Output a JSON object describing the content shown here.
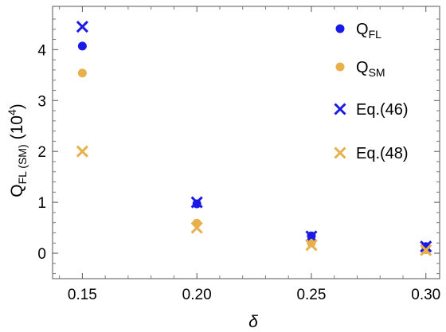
{
  "chart_data": {
    "type": "scatter",
    "xlabel": "δ",
    "ylabel": {
      "main": "Q",
      "sub": "FL (SM)",
      "unit_base": "(10",
      "unit_exp": "4",
      "unit_close": ")"
    },
    "xlim": [
      0.137,
      0.306
    ],
    "ylim": [
      -0.5,
      4.85
    ],
    "x_ticks": [
      "0.15",
      "0.20",
      "0.25",
      "0.30"
    ],
    "x_tick_values": [
      0.15,
      0.2,
      0.25,
      0.3
    ],
    "y_ticks": [
      "0",
      "1",
      "2",
      "3",
      "4"
    ],
    "y_tick_values": [
      0,
      1,
      2,
      3,
      4
    ],
    "grid": false,
    "legend_position": "top-right",
    "series": [
      {
        "key": "qfl",
        "label_main": "Q",
        "label_sub": "FL",
        "marker": "circle",
        "color": "#1a1ae6",
        "points": [
          [
            0.15,
            4.07
          ],
          [
            0.2,
            0.97
          ],
          [
            0.25,
            0.34
          ],
          [
            0.3,
            0.13
          ]
        ]
      },
      {
        "key": "qsm",
        "label_main": "Q",
        "label_sub": "SM",
        "marker": "circle",
        "color": "#e8b04a",
        "points": [
          [
            0.15,
            3.54
          ],
          [
            0.2,
            0.59
          ],
          [
            0.25,
            0.2
          ],
          [
            0.3,
            0.07
          ]
        ]
      },
      {
        "key": "eq46",
        "label_main": "Eq.(46)",
        "label_sub": "",
        "marker": "cross",
        "color": "#1a1ae6",
        "points": [
          [
            0.15,
            4.45
          ],
          [
            0.2,
            1.0
          ],
          [
            0.25,
            0.33
          ],
          [
            0.3,
            0.13
          ]
        ]
      },
      {
        "key": "eq48",
        "label_main": "Eq.(48)",
        "label_sub": "",
        "marker": "cross",
        "color": "#e8b04a",
        "points": [
          [
            0.15,
            2.0
          ],
          [
            0.2,
            0.5
          ],
          [
            0.25,
            0.16
          ],
          [
            0.3,
            0.06
          ]
        ]
      }
    ]
  }
}
